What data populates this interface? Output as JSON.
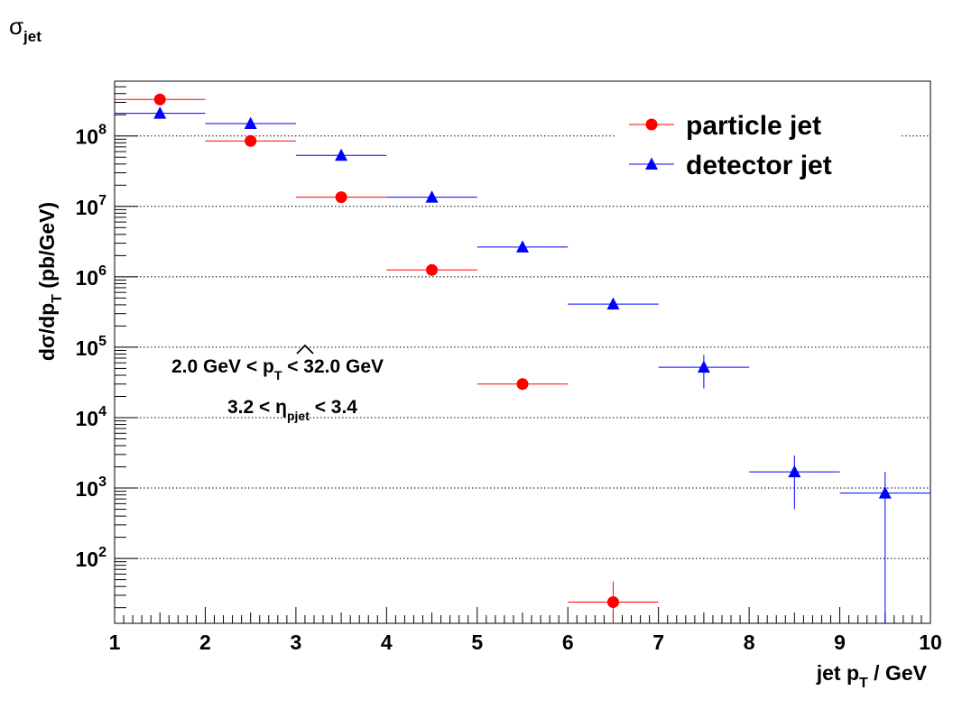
{
  "chart_data": {
    "type": "scatter",
    "title": "σ",
    "title_sub": "jet",
    "xlabel": "jet p",
    "xlabel_sub": "T",
    "xlabel_unit": " / GeV",
    "ylabel": {
      "prefix": "dσ/dp",
      "sub": "T",
      "unit": " (pb/GeV)"
    },
    "xlim": [
      1,
      10
    ],
    "ylim": [
      12,
      600000000
    ],
    "y_scale": "log",
    "x_ticks": [
      "1",
      "2",
      "3",
      "4",
      "5",
      "6",
      "7",
      "8",
      "9",
      "10"
    ],
    "y_ticks": [
      {
        "base": "10",
        "exp": "2",
        "value": 100
      },
      {
        "base": "10",
        "exp": "3",
        "value": 1000
      },
      {
        "base": "10",
        "exp": "4",
        "value": 10000
      },
      {
        "base": "10",
        "exp": "5",
        "value": 100000
      },
      {
        "base": "10",
        "exp": "6",
        "value": 1000000
      },
      {
        "base": "10",
        "exp": "7",
        "value": 10000000
      },
      {
        "base": "10",
        "exp": "8",
        "value": 100000000
      }
    ],
    "grid": "horizontal dotted at major y ticks",
    "legend_position": "top-right",
    "series": [
      {
        "name": "particle jet",
        "color": "#ff0000",
        "marker": "circle",
        "points": [
          {
            "x": 1.5,
            "y": 330000000,
            "xlo": 1,
            "xhi": 2
          },
          {
            "x": 2.5,
            "y": 85000000,
            "xlo": 2,
            "xhi": 3
          },
          {
            "x": 3.5,
            "y": 13500000,
            "xlo": 3,
            "xhi": 4
          },
          {
            "x": 4.5,
            "y": 1250000,
            "xlo": 4,
            "xhi": 5
          },
          {
            "x": 5.5,
            "y": 30000,
            "xlo": 5,
            "xhi": 6
          },
          {
            "x": 6.5,
            "y": 24,
            "xlo": 6,
            "xhi": 7,
            "ylo": 12,
            "yhi": 47
          }
        ]
      },
      {
        "name": "detector jet",
        "color": "#0000ff",
        "marker": "triangle",
        "points": [
          {
            "x": 1.5,
            "y": 210000000,
            "xlo": 1,
            "xhi": 2
          },
          {
            "x": 2.5,
            "y": 150000000,
            "xlo": 2,
            "xhi": 3
          },
          {
            "x": 3.5,
            "y": 53000000,
            "xlo": 3,
            "xhi": 4
          },
          {
            "x": 4.5,
            "y": 13500000,
            "xlo": 4,
            "xhi": 5
          },
          {
            "x": 5.5,
            "y": 2650000,
            "xlo": 5,
            "xhi": 6
          },
          {
            "x": 6.5,
            "y": 410000,
            "xlo": 6,
            "xhi": 7
          },
          {
            "x": 7.5,
            "y": 52000,
            "xlo": 7,
            "xhi": 8,
            "ylo": 26000,
            "yhi": 78000
          },
          {
            "x": 8.5,
            "y": 1700,
            "xlo": 8,
            "xhi": 9,
            "ylo": 500,
            "yhi": 2900
          },
          {
            "x": 9.5,
            "y": 850,
            "xlo": 9,
            "xhi": 10,
            "ylo": 12,
            "yhi": 1700
          }
        ]
      }
    ],
    "annotations": [
      {
        "id": "pthat-range",
        "prefix": "2.0 GeV < ",
        "symbol": "p",
        "symbol_sub": "T",
        "suffix": " < 32.0 GeV"
      },
      {
        "id": "eta-range",
        "prefix": "3.2 < ",
        "symbol": "η",
        "symbol_sub": "pjet",
        "suffix": " < 3.4"
      }
    ]
  }
}
